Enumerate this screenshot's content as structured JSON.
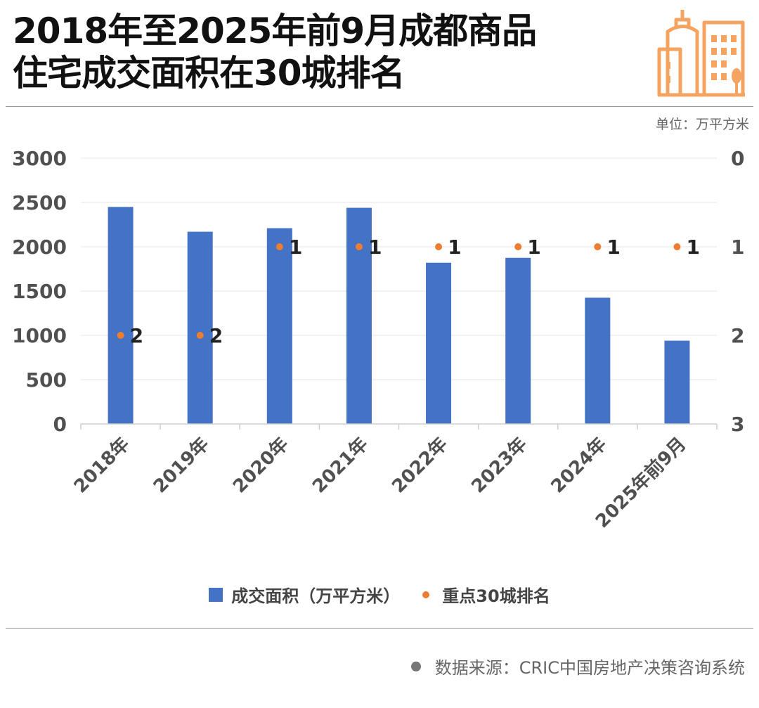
{
  "header": {
    "title_line1": "2018年至2025年前9月成都商品",
    "title_line2": "住宅成交面积在30城排名",
    "icon": "city-buildings-icon"
  },
  "unit": "单位：万平方米",
  "source": "数据来源：CRIC中国房地产决策咨询系统",
  "colors": {
    "bar": "#4472C4",
    "rank": "#ED7D31",
    "icon": "#F4A460"
  },
  "chart_data": {
    "type": "bar",
    "categories": [
      "2018年",
      "2019年",
      "2020年",
      "2021年",
      "2022年",
      "2023年",
      "2024年",
      "2025年前9月"
    ],
    "series": [
      {
        "name": "成交面积（万平方米）",
        "type": "bar",
        "axis": "left",
        "values": [
          2450,
          2170,
          2210,
          2440,
          1820,
          1875,
          1425,
          940
        ]
      },
      {
        "name": "重点30城排名",
        "type": "scatter",
        "axis": "right-inverted",
        "values": [
          2,
          2,
          1,
          1,
          1,
          1,
          1,
          1
        ]
      }
    ],
    "y_left": {
      "min": 0,
      "max": 3000,
      "ticks": [
        "0",
        "500",
        "1000",
        "1500",
        "2000",
        "2500",
        "3000"
      ]
    },
    "y_right": {
      "min": 0,
      "max": 3,
      "inverted": true,
      "ticks": [
        "0",
        "1",
        "2",
        "3"
      ]
    },
    "legend": [
      "成交面积（万平方米）",
      "重点30城排名"
    ],
    "legend_position": "bottom"
  }
}
